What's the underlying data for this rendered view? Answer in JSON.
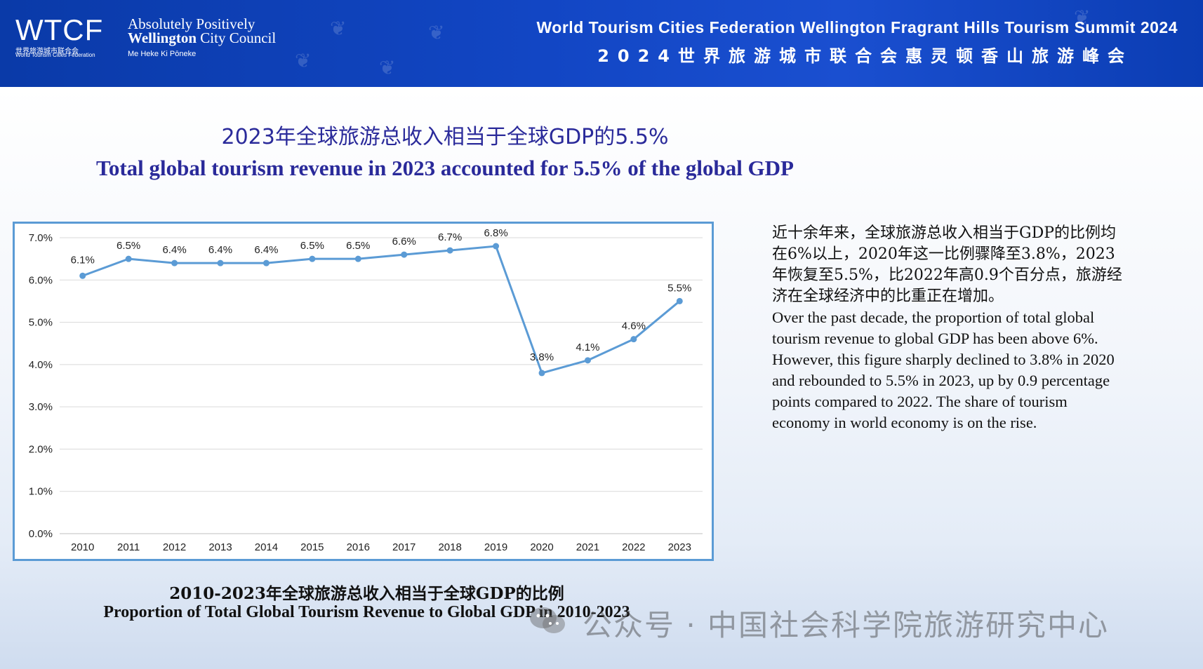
{
  "header": {
    "logo_wtcf": "WTCF",
    "logo_wtcf_cn": "世界旅游城市联合会",
    "logo_wtcf_en": "World Tourism Cities Federation",
    "wcc_line1": "Absolutely Positively",
    "wcc_line2_bold": "Wellington",
    "wcc_line2_rest": " City Council",
    "wcc_line3": "Me Heke Ki Pōneke",
    "summit_en": "World Tourism Cities Federation Wellington Fragrant Hills Tourism Summit 2024",
    "summit_cn": "2024世界旅游城市联合会惠灵顿香山旅游峰会"
  },
  "title": {
    "cn": "2023年全球旅游总收入相当于全球GDP的5.5%",
    "en": "Total global tourism revenue in 2023 accounted for 5.5% of the global GDP"
  },
  "caption": {
    "cn": "2010-2023年全球旅游总收入相当于全球GDP的比例",
    "en": "Proportion of Total Global Tourism Revenue to Global GDP in 2010-2023"
  },
  "description": {
    "cn": "近十余年来，全球旅游总收入相当于GDP的比例均在6%以上，2020年这一比例骤降至3.8%，2023年恢复至5.5%，比2022年高0.9个百分点，旅游经济在全球经济中的比重正在增加。",
    "en": "Over the past decade, the proportion of total global tourism revenue to global GDP has been above 6%. However, this figure sharply declined to 3.8% in 2020 and rebounded to 5.5% in 2023, up by 0.9 percentage points compared to 2022. The share of tourism economy in world economy is on the rise."
  },
  "watermark": "公众号 · 中国社会科学院旅游研究中心",
  "colors": {
    "line": "#5b9bd5",
    "title": "#2a2a9a",
    "header": "#1246c4"
  },
  "chart_data": {
    "type": "line",
    "categories": [
      "2010",
      "2011",
      "2012",
      "2013",
      "2014",
      "2015",
      "2016",
      "2017",
      "2018",
      "2019",
      "2020",
      "2021",
      "2022",
      "2023"
    ],
    "values": [
      6.1,
      6.5,
      6.4,
      6.4,
      6.4,
      6.5,
      6.5,
      6.6,
      6.7,
      6.8,
      3.8,
      4.1,
      4.6,
      5.5
    ],
    "data_labels": [
      "6.1%",
      "6.5%",
      "6.4%",
      "6.4%",
      "6.4%",
      "6.5%",
      "6.5%",
      "6.6%",
      "6.7%",
      "6.8%",
      "3.8%",
      "4.1%",
      "4.6%",
      "5.5%"
    ],
    "y_ticks": [
      "0.0%",
      "1.0%",
      "2.0%",
      "3.0%",
      "4.0%",
      "5.0%",
      "6.0%",
      "7.0%"
    ],
    "ylim": [
      0,
      7
    ],
    "grid": true,
    "legend": "none"
  }
}
